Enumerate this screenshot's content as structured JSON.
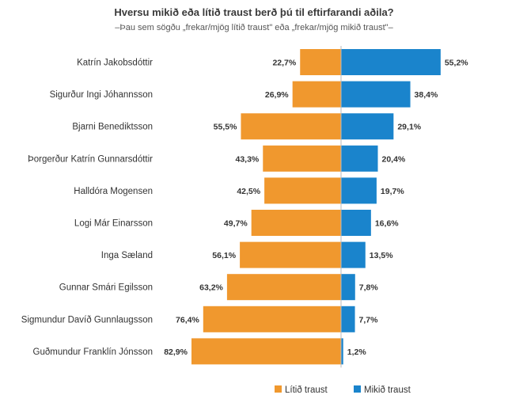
{
  "chart_data": {
    "type": "bar",
    "orientation": "horizontal-diverging",
    "title": "Hversu mikið eða lítið traust berð þú til eftirfarandi aðila?",
    "subtitle": "–Þau sem sögðu „frekar/mjög lítið traust\" eða „frekar/mjög mikið traust\"–",
    "categories": [
      "Katrín Jakobsdóttir",
      "Sigurður Ingi Jóhannsson",
      "Bjarni Benediktsson",
      "Þorgerður Katrín Gunnarsdóttir",
      "Halldóra Mogensen",
      "Logi Már Einarsson",
      "Inga Sæland",
      "Gunnar Smári Egilsson",
      "Sigmundur Davíð Gunnlaugsson",
      "Guðmundur Franklín Jónsson"
    ],
    "series": [
      {
        "name": "Lítið traust",
        "color": "#F0982E",
        "side": "left",
        "values": [
          22.7,
          26.9,
          55.5,
          43.3,
          42.5,
          49.7,
          56.1,
          63.2,
          76.4,
          82.9
        ],
        "labels": [
          "22,7%",
          "26,9%",
          "55,5%",
          "43,3%",
          "42,5%",
          "49,7%",
          "56,1%",
          "63,2%",
          "76,4%",
          "82,9%"
        ]
      },
      {
        "name": "Mikið traust",
        "color": "#1A84CC",
        "side": "right",
        "values": [
          55.2,
          38.4,
          29.1,
          20.4,
          19.7,
          16.6,
          13.5,
          7.8,
          7.7,
          1.2
        ],
        "labels": [
          "55,2%",
          "38,4%",
          "29,1%",
          "20,4%",
          "19,7%",
          "16,6%",
          "13,5%",
          "7,8%",
          "7,7%",
          "1,2%"
        ]
      }
    ],
    "xlim": [
      -100,
      100
    ],
    "grid": false,
    "legend_position": "bottom-right"
  }
}
